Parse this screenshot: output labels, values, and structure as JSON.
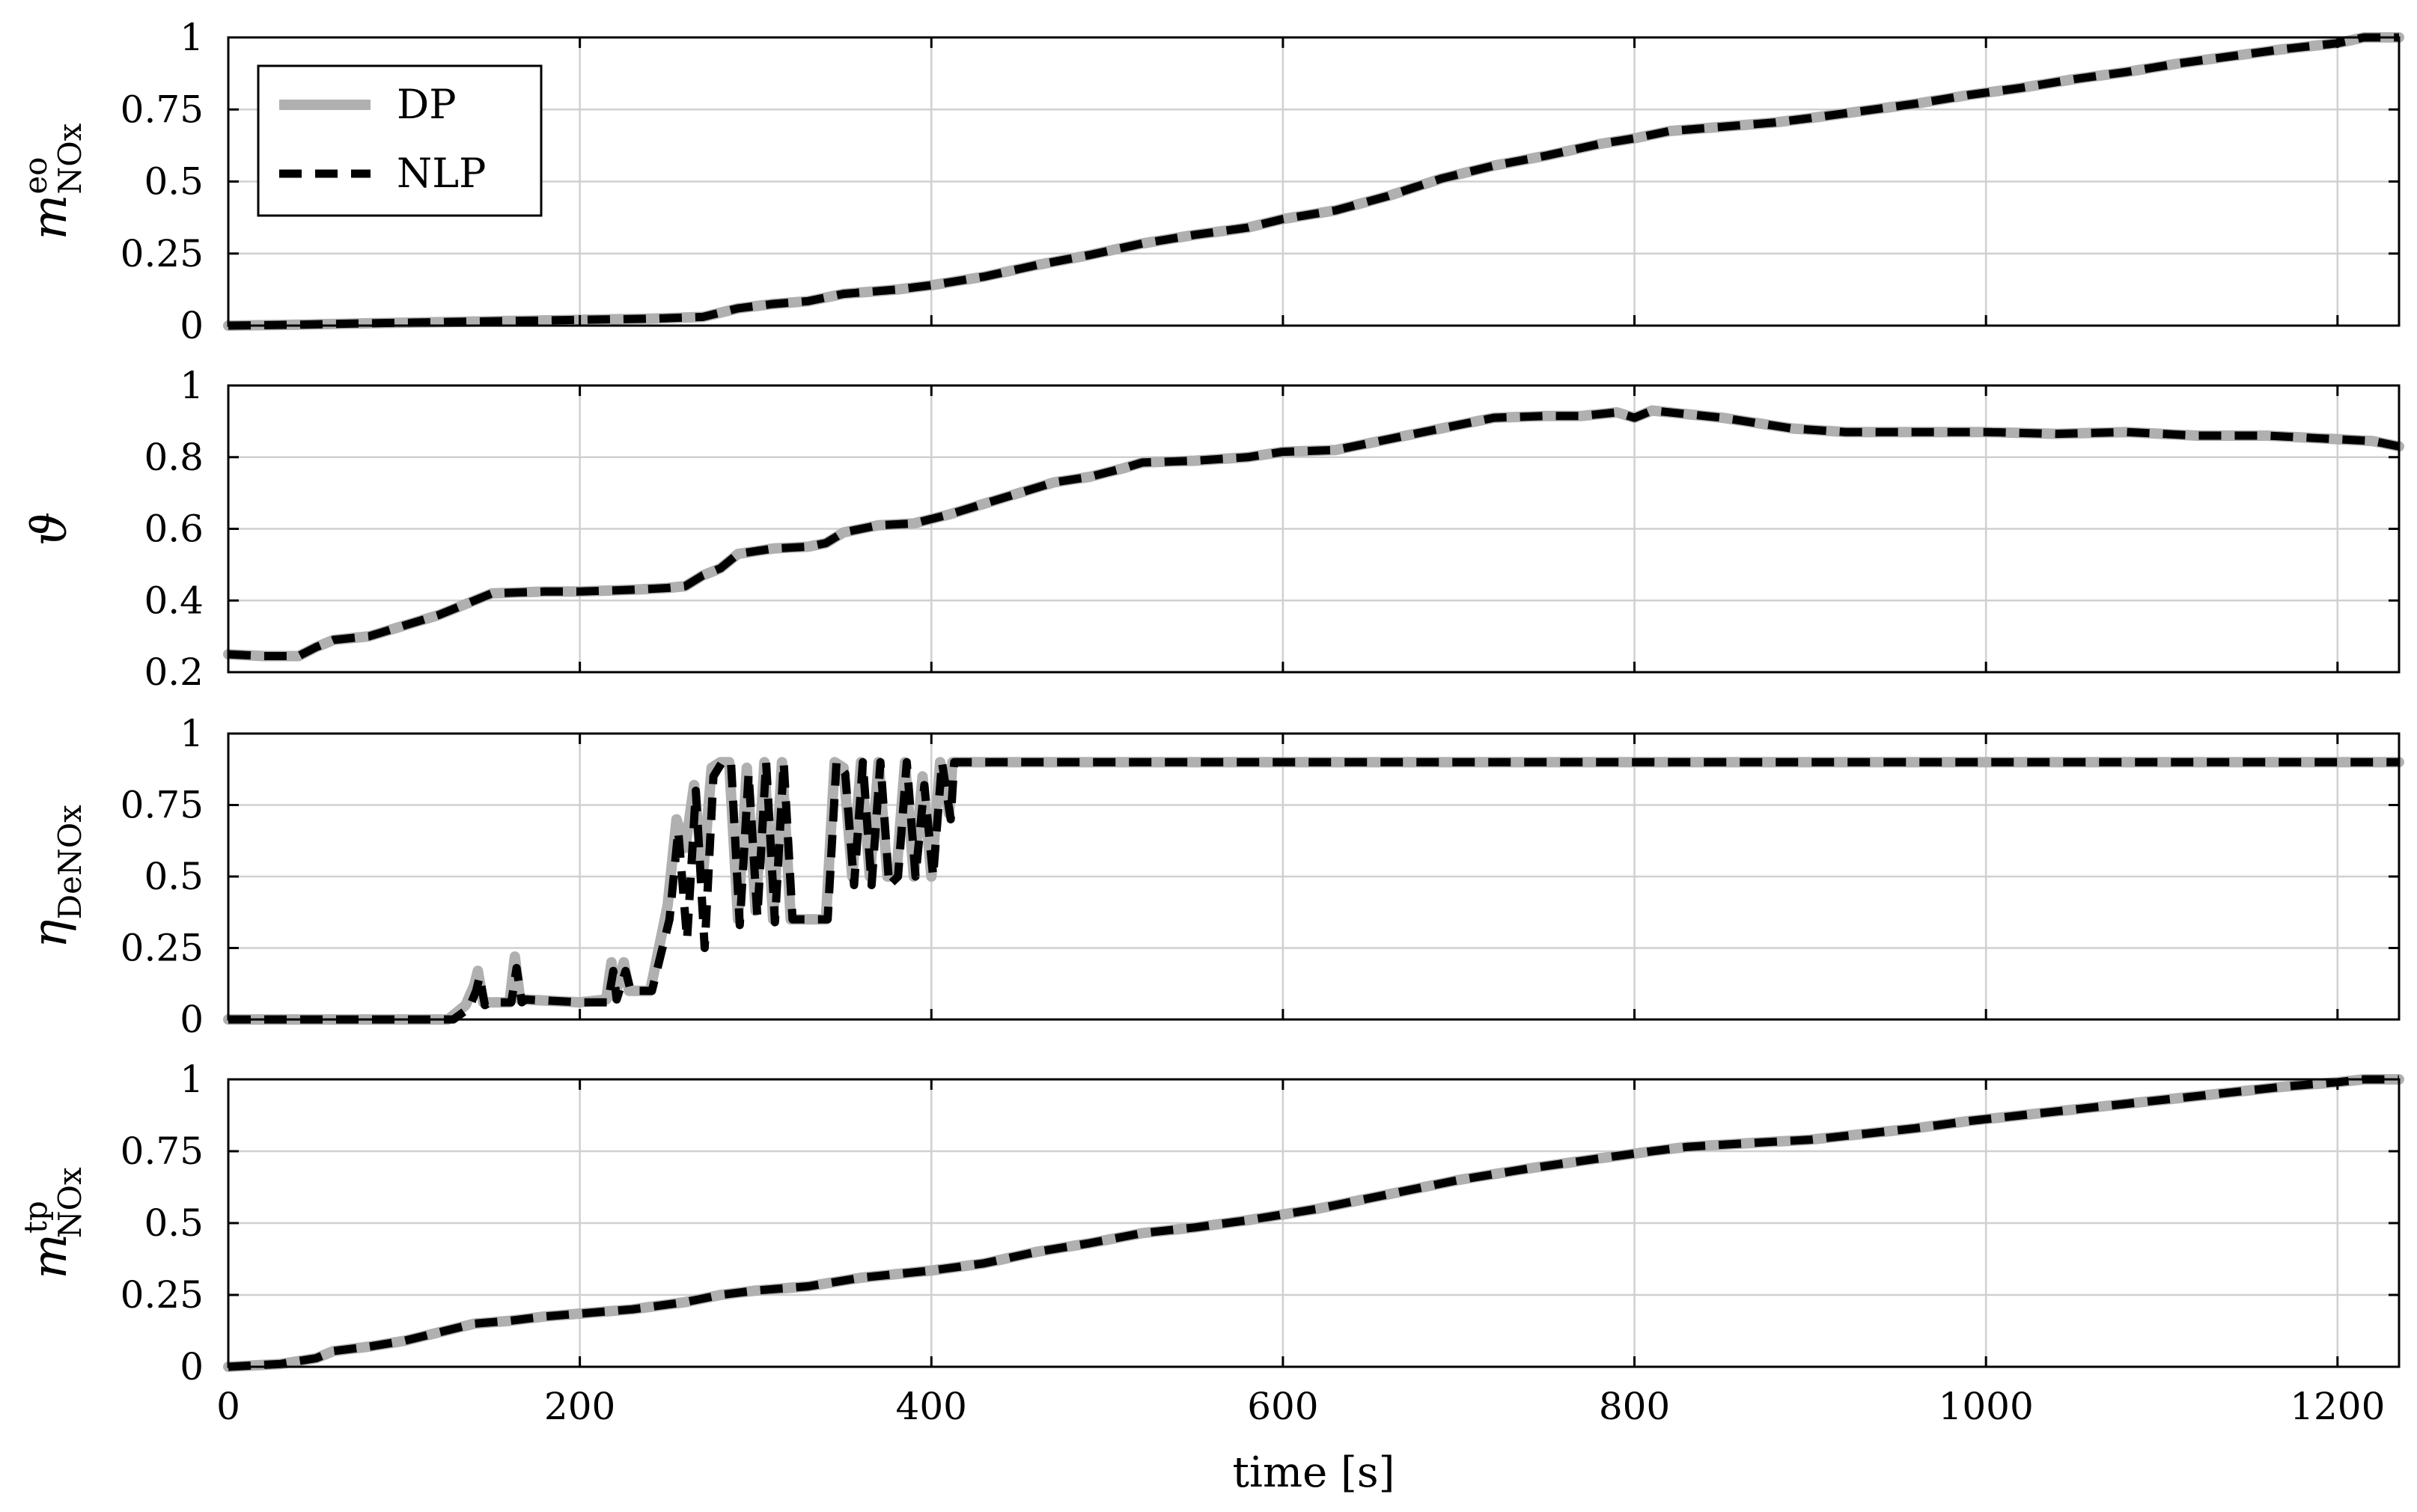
{
  "chart_data": [
    {
      "type": "line",
      "id": "m-eo",
      "ylabel": {
        "base": "m",
        "sup": "eo",
        "sub": "NOx"
      },
      "xlim": [
        0,
        1235
      ],
      "ylim": [
        0,
        1
      ],
      "yticks": [
        0,
        0.25,
        0.5,
        0.75,
        1
      ],
      "ytick_labels": [
        "0",
        "0.25",
        "0.5",
        "0.75",
        "1"
      ],
      "grid": true,
      "legend": {
        "placement": "top-left",
        "entries": [
          "DP",
          "NLP"
        ]
      },
      "series": [
        {
          "name": "DP",
          "color": "#b0b0b0",
          "style": "solid",
          "x": [
            0,
            40,
            80,
            120,
            160,
            200,
            240,
            270,
            290,
            310,
            330,
            350,
            380,
            400,
            430,
            460,
            490,
            520,
            550,
            580,
            600,
            630,
            660,
            690,
            720,
            750,
            780,
            800,
            820,
            850,
            880,
            900,
            930,
            960,
            990,
            1020,
            1050,
            1080,
            1110,
            1140,
            1170,
            1200,
            1215,
            1235
          ],
          "y": [
            0,
            0.003,
            0.008,
            0.012,
            0.016,
            0.02,
            0.024,
            0.03,
            0.06,
            0.075,
            0.085,
            0.11,
            0.125,
            0.14,
            0.17,
            0.21,
            0.245,
            0.285,
            0.315,
            0.34,
            0.37,
            0.4,
            0.45,
            0.51,
            0.555,
            0.59,
            0.63,
            0.65,
            0.675,
            0.69,
            0.705,
            0.72,
            0.745,
            0.77,
            0.8,
            0.825,
            0.855,
            0.88,
            0.91,
            0.935,
            0.96,
            0.98,
            1.0,
            1.0
          ]
        },
        {
          "name": "NLP",
          "color": "#000000",
          "style": "dashed",
          "x": [
            0,
            40,
            80,
            120,
            160,
            200,
            240,
            270,
            290,
            310,
            330,
            350,
            380,
            400,
            430,
            460,
            490,
            520,
            550,
            580,
            600,
            630,
            660,
            690,
            720,
            750,
            780,
            800,
            820,
            850,
            880,
            900,
            930,
            960,
            990,
            1020,
            1050,
            1080,
            1110,
            1140,
            1170,
            1200,
            1215,
            1235
          ],
          "y": [
            0,
            0.003,
            0.008,
            0.012,
            0.016,
            0.02,
            0.024,
            0.03,
            0.06,
            0.075,
            0.085,
            0.11,
            0.125,
            0.14,
            0.17,
            0.21,
            0.245,
            0.285,
            0.315,
            0.34,
            0.37,
            0.4,
            0.45,
            0.51,
            0.555,
            0.59,
            0.63,
            0.65,
            0.675,
            0.69,
            0.705,
            0.72,
            0.745,
            0.77,
            0.8,
            0.825,
            0.855,
            0.88,
            0.91,
            0.935,
            0.96,
            0.98,
            1.0,
            1.0
          ]
        }
      ]
    },
    {
      "type": "line",
      "id": "theta",
      "ylabel": {
        "base": "ϑ",
        "sup": "",
        "sub": ""
      },
      "xlim": [
        0,
        1235
      ],
      "ylim": [
        0.2,
        1
      ],
      "yticks": [
        0.2,
        0.4,
        0.6,
        0.8,
        1
      ],
      "ytick_labels": [
        "0.2",
        "0.4",
        "0.6",
        "0.8",
        "1"
      ],
      "grid": true,
      "series": [
        {
          "name": "DP",
          "color": "#b0b0b0",
          "style": "solid",
          "x": [
            0,
            20,
            40,
            50,
            60,
            80,
            100,
            120,
            140,
            150,
            180,
            200,
            230,
            250,
            260,
            270,
            280,
            290,
            310,
            330,
            340,
            350,
            370,
            390,
            410,
            430,
            450,
            470,
            490,
            510,
            520,
            550,
            580,
            600,
            630,
            650,
            680,
            700,
            720,
            750,
            770,
            790,
            800,
            810,
            830,
            850,
            870,
            890,
            920,
            960,
            1000,
            1040,
            1080,
            1120,
            1160,
            1200,
            1220,
            1235
          ],
          "y": [
            0.25,
            0.245,
            0.245,
            0.27,
            0.29,
            0.3,
            0.33,
            0.36,
            0.4,
            0.42,
            0.425,
            0.425,
            0.43,
            0.435,
            0.44,
            0.47,
            0.49,
            0.53,
            0.545,
            0.55,
            0.56,
            0.59,
            0.61,
            0.615,
            0.64,
            0.67,
            0.7,
            0.73,
            0.745,
            0.77,
            0.785,
            0.79,
            0.8,
            0.815,
            0.82,
            0.84,
            0.87,
            0.89,
            0.91,
            0.915,
            0.915,
            0.925,
            0.91,
            0.93,
            0.92,
            0.91,
            0.895,
            0.88,
            0.87,
            0.87,
            0.87,
            0.865,
            0.87,
            0.86,
            0.86,
            0.85,
            0.845,
            0.83
          ]
        },
        {
          "name": "NLP",
          "color": "#000000",
          "style": "dashed",
          "x": [
            0,
            20,
            40,
            50,
            60,
            80,
            100,
            120,
            140,
            150,
            180,
            200,
            230,
            250,
            260,
            270,
            280,
            290,
            310,
            330,
            340,
            350,
            370,
            390,
            410,
            430,
            450,
            470,
            490,
            510,
            520,
            550,
            580,
            600,
            630,
            650,
            680,
            700,
            720,
            750,
            770,
            790,
            800,
            810,
            830,
            850,
            870,
            890,
            920,
            960,
            1000,
            1040,
            1080,
            1120,
            1160,
            1200,
            1220,
            1235
          ],
          "y": [
            0.25,
            0.245,
            0.245,
            0.27,
            0.29,
            0.3,
            0.33,
            0.36,
            0.4,
            0.42,
            0.425,
            0.425,
            0.43,
            0.435,
            0.44,
            0.47,
            0.49,
            0.53,
            0.545,
            0.55,
            0.56,
            0.59,
            0.61,
            0.615,
            0.64,
            0.67,
            0.7,
            0.73,
            0.745,
            0.77,
            0.785,
            0.79,
            0.8,
            0.815,
            0.82,
            0.84,
            0.87,
            0.89,
            0.91,
            0.915,
            0.915,
            0.925,
            0.91,
            0.93,
            0.92,
            0.91,
            0.895,
            0.88,
            0.87,
            0.87,
            0.87,
            0.865,
            0.87,
            0.86,
            0.86,
            0.85,
            0.845,
            0.83
          ]
        }
      ]
    },
    {
      "type": "line",
      "id": "eta",
      "ylabel": {
        "base": "η",
        "sup": "",
        "sub": "DeNOx"
      },
      "xlim": [
        0,
        1235
      ],
      "ylim": [
        0,
        1
      ],
      "yticks": [
        0,
        0.25,
        0.5,
        0.75,
        1
      ],
      "ytick_labels": [
        "0",
        "0.25",
        "0.5",
        "0.75",
        "1"
      ],
      "grid": true,
      "series": [
        {
          "name": "DP",
          "color": "#b0b0b0",
          "style": "solid",
          "x": [
            0,
            125,
            135,
            140,
            142,
            145,
            148,
            160,
            163,
            166,
            168,
            200,
            215,
            218,
            220,
            225,
            228,
            240,
            250,
            255,
            260,
            265,
            270,
            275,
            280,
            285,
            290,
            295,
            300,
            305,
            310,
            315,
            320,
            330,
            340,
            345,
            350,
            355,
            360,
            365,
            370,
            375,
            380,
            385,
            390,
            395,
            400,
            405,
            410,
            412,
            1235
          ],
          "y": [
            0,
            0,
            0.05,
            0.12,
            0.17,
            0.06,
            0.06,
            0.06,
            0.22,
            0.07,
            0.07,
            0.06,
            0.07,
            0.2,
            0.08,
            0.2,
            0.1,
            0.1,
            0.4,
            0.7,
            0.6,
            0.82,
            0.5,
            0.88,
            0.9,
            0.9,
            0.35,
            0.88,
            0.38,
            0.9,
            0.35,
            0.9,
            0.35,
            0.35,
            0.35,
            0.9,
            0.88,
            0.5,
            0.9,
            0.5,
            0.9,
            0.5,
            0.5,
            0.9,
            0.5,
            0.85,
            0.5,
            0.9,
            0.72,
            0.9,
            0.9
          ]
        },
        {
          "name": "NLP",
          "color": "#000000",
          "style": "dashed",
          "x": [
            0,
            128,
            137,
            141,
            143,
            146,
            149,
            161,
            164,
            167,
            169,
            201,
            216,
            219,
            221,
            226,
            229,
            241,
            251,
            256,
            261,
            266,
            271,
            276,
            281,
            286,
            291,
            296,
            301,
            306,
            311,
            316,
            321,
            331,
            341,
            346,
            351,
            356,
            361,
            366,
            371,
            376,
            381,
            386,
            391,
            396,
            401,
            406,
            411,
            413,
            1235
          ],
          "y": [
            0,
            0,
            0.04,
            0.1,
            0.15,
            0.05,
            0.06,
            0.06,
            0.18,
            0.06,
            0.07,
            0.06,
            0.06,
            0.17,
            0.07,
            0.17,
            0.1,
            0.1,
            0.35,
            0.66,
            0.28,
            0.8,
            0.25,
            0.85,
            0.9,
            0.9,
            0.33,
            0.86,
            0.36,
            0.9,
            0.34,
            0.9,
            0.35,
            0.35,
            0.35,
            0.9,
            0.86,
            0.47,
            0.9,
            0.47,
            0.9,
            0.47,
            0.5,
            0.9,
            0.5,
            0.82,
            0.5,
            0.9,
            0.7,
            0.9,
            0.9
          ]
        }
      ]
    },
    {
      "type": "line",
      "id": "m-tp",
      "ylabel": {
        "base": "m",
        "sup": "tp",
        "sub": "NOx"
      },
      "xlim": [
        0,
        1235
      ],
      "ylim": [
        0,
        1
      ],
      "yticks": [
        0,
        0.25,
        0.5,
        0.75,
        1
      ],
      "ytick_labels": [
        "0",
        "0.25",
        "0.5",
        "0.75",
        "1"
      ],
      "xticks": [
        0,
        200,
        400,
        600,
        800,
        1000,
        1200
      ],
      "xtick_labels": [
        "0",
        "200",
        "400",
        "600",
        "800",
        "1000",
        "1200"
      ],
      "xlabel": "time [s]",
      "grid": true,
      "series": [
        {
          "name": "DP",
          "color": "#b0b0b0",
          "style": "solid",
          "x": [
            0,
            30,
            50,
            60,
            80,
            100,
            120,
            140,
            160,
            180,
            200,
            230,
            260,
            280,
            300,
            330,
            360,
            400,
            430,
            460,
            490,
            520,
            550,
            580,
            620,
            660,
            700,
            740,
            780,
            810,
            830,
            870,
            900,
            930,
            960,
            990,
            1020,
            1050,
            1080,
            1110,
            1140,
            1170,
            1200,
            1215,
            1235
          ],
          "y": [
            0,
            0.01,
            0.03,
            0.055,
            0.07,
            0.09,
            0.12,
            0.15,
            0.16,
            0.175,
            0.185,
            0.2,
            0.225,
            0.25,
            0.265,
            0.28,
            0.31,
            0.335,
            0.36,
            0.4,
            0.43,
            0.465,
            0.485,
            0.51,
            0.55,
            0.6,
            0.65,
            0.69,
            0.725,
            0.75,
            0.765,
            0.78,
            0.79,
            0.81,
            0.83,
            0.855,
            0.875,
            0.895,
            0.915,
            0.935,
            0.955,
            0.975,
            0.99,
            1.0,
            1.0
          ]
        },
        {
          "name": "NLP",
          "color": "#000000",
          "style": "dashed",
          "x": [
            0,
            30,
            50,
            60,
            80,
            100,
            120,
            140,
            160,
            180,
            200,
            230,
            260,
            280,
            300,
            330,
            360,
            400,
            430,
            460,
            490,
            520,
            550,
            580,
            620,
            660,
            700,
            740,
            780,
            810,
            830,
            870,
            900,
            930,
            960,
            990,
            1020,
            1050,
            1080,
            1110,
            1140,
            1170,
            1200,
            1215,
            1235
          ],
          "y": [
            0,
            0.01,
            0.03,
            0.055,
            0.07,
            0.09,
            0.12,
            0.15,
            0.16,
            0.175,
            0.185,
            0.2,
            0.225,
            0.25,
            0.265,
            0.28,
            0.31,
            0.335,
            0.36,
            0.4,
            0.43,
            0.465,
            0.485,
            0.51,
            0.55,
            0.6,
            0.65,
            0.69,
            0.725,
            0.75,
            0.765,
            0.78,
            0.79,
            0.81,
            0.83,
            0.855,
            0.875,
            0.895,
            0.915,
            0.935,
            0.955,
            0.975,
            0.99,
            1.0,
            1.0
          ]
        }
      ]
    }
  ]
}
